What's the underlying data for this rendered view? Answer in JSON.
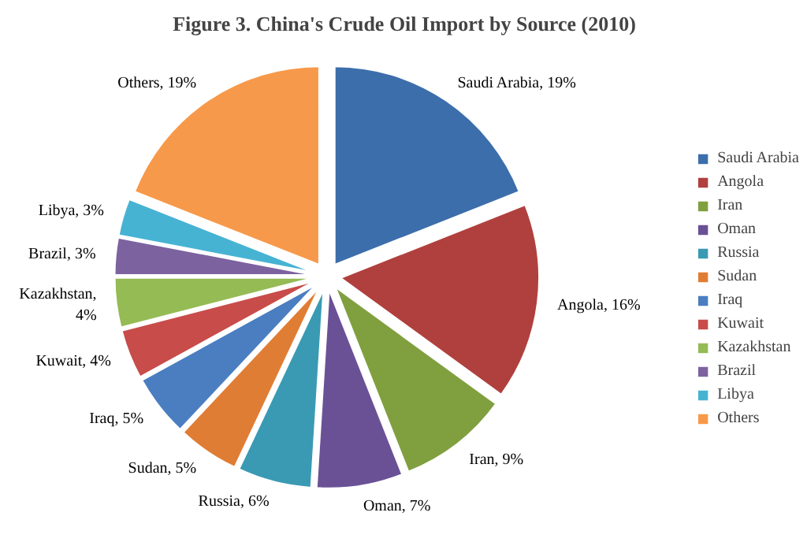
{
  "chart_data": {
    "type": "pie",
    "title": "Figure 3. China's Crude Oil Import by Source (2010)",
    "categories": [
      "Saudi Arabia",
      "Angola",
      "Iran",
      "Oman",
      "Russia",
      "Sudan",
      "Iraq",
      "Kuwait",
      "Kazakhstan",
      "Brazil",
      "Libya",
      "Others"
    ],
    "values": [
      19,
      16,
      9,
      7,
      6,
      5,
      5,
      4,
      4,
      3,
      3,
      19
    ],
    "value_labels": [
      "Saudi Arabia, 19%",
      "Angola, 16%",
      "Iran, 9%",
      "Oman, 7%",
      "Russia, 6%",
      "Sudan, 5%",
      "Iraq, 5%",
      "Kuwait, 4%",
      "Kazakhstan,\n4%",
      "Brazil, 3%",
      "Libya, 3%",
      "Others, 19%"
    ],
    "colors": [
      "#3c6eab",
      "#b0403d",
      "#80a040",
      "#6a5196",
      "#3a9ab3",
      "#e07d34",
      "#4a7ec0",
      "#c84c4a",
      "#95bb55",
      "#7d62a0",
      "#47b3d3",
      "#f7994a"
    ],
    "legend": "right"
  }
}
